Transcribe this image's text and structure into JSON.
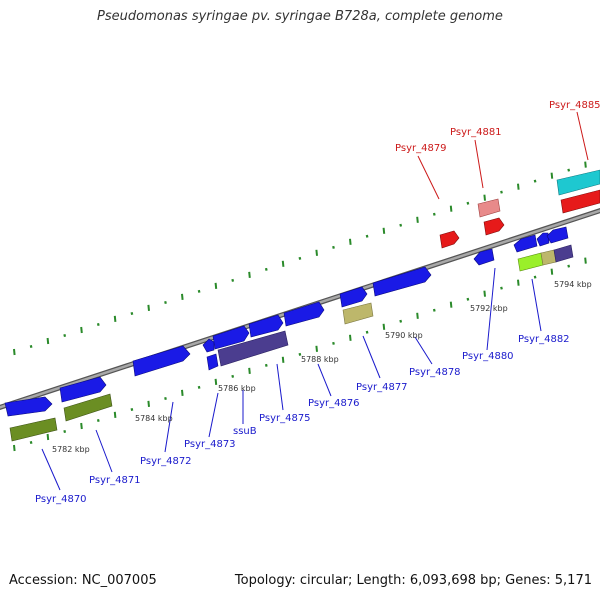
{
  "title": "Pseudomonas syringae pv. syringae B728a, complete genome",
  "footer": {
    "accession": "Accession: NC_007005",
    "topology": "Topology: circular; Length: 6,093,698 bp; Genes: 5,171"
  },
  "colors": {
    "background": "#ffffff",
    "backbone": "#8c8c8c",
    "tick": "#2a8a2a",
    "gene_blue": "#1a1ae6",
    "gene_red": "#e61a1a",
    "gene_pink": "#e88a8a",
    "gene_cyan": "#1ec8d0",
    "gene_olive": "#6b8e23",
    "gene_khaki": "#bdb76b",
    "gene_slate": "#4b3d8f",
    "gene_lime": "#9aef2a",
    "label_blue": "#1a1acc",
    "label_red": "#cc1a1a"
  },
  "axis_labels": [
    "5782 kbp",
    "5784 kbp",
    "5786 kbp",
    "5788 kbp",
    "5790 kbp",
    "5792 kbp",
    "5794 kbp"
  ],
  "gene_labels": [
    {
      "text": "Psyr_4870",
      "color": "blue"
    },
    {
      "text": "Psyr_4871",
      "color": "blue"
    },
    {
      "text": "Psyr_4872",
      "color": "blue"
    },
    {
      "text": "Psyr_4873",
      "color": "blue"
    },
    {
      "text": "ssuB",
      "color": "blue"
    },
    {
      "text": "Psyr_4875",
      "color": "blue"
    },
    {
      "text": "Psyr_4876",
      "color": "blue"
    },
    {
      "text": "Psyr_4877",
      "color": "blue"
    },
    {
      "text": "Psyr_4878",
      "color": "blue"
    },
    {
      "text": "Psyr_4880",
      "color": "blue"
    },
    {
      "text": "Psyr_4882",
      "color": "blue"
    },
    {
      "text": "Psyr_4879",
      "color": "red"
    },
    {
      "text": "Psyr_4881",
      "color": "red"
    },
    {
      "text": "Psyr_4885",
      "color": "red"
    }
  ]
}
